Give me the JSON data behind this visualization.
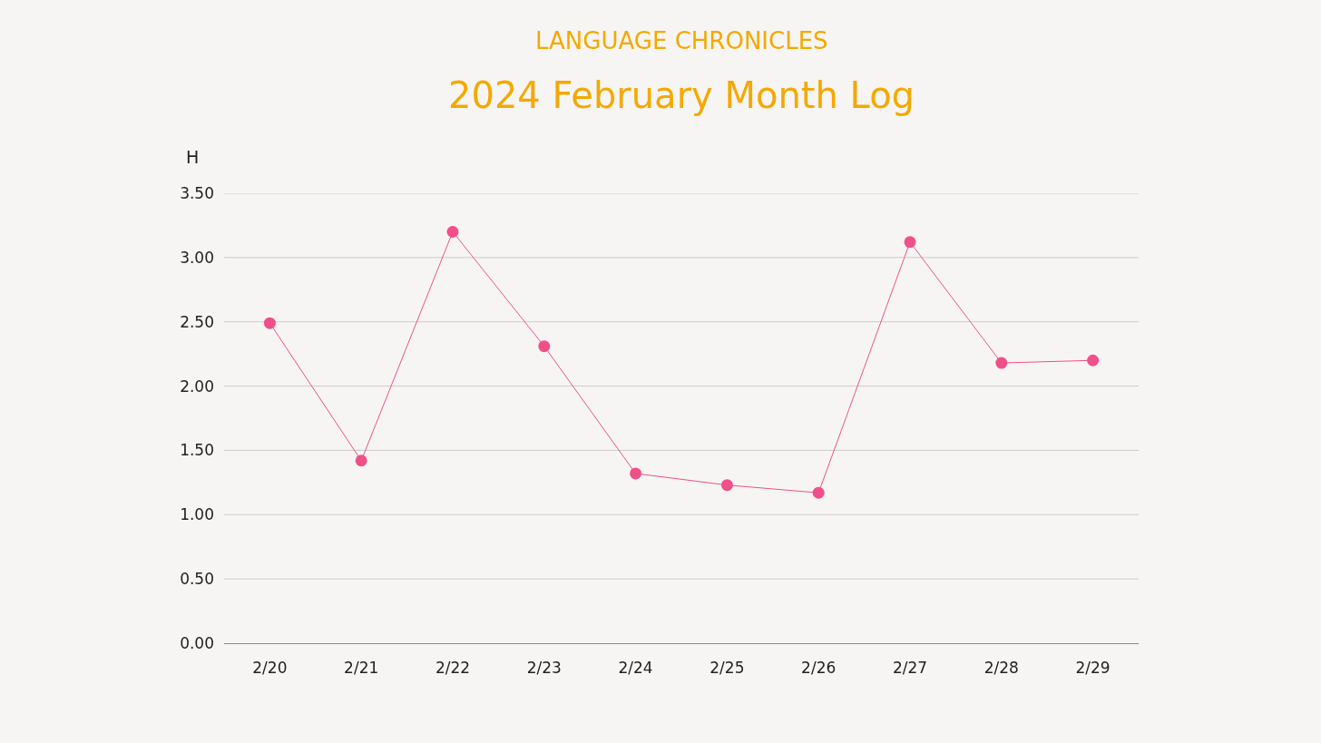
{
  "chart_data": {
    "type": "line",
    "title": "2024 February Month Log",
    "subtitle": "LANGUAGE CHRONICLES",
    "ylabel": "H",
    "categories": [
      "2/20",
      "2/21",
      "2/22",
      "2/23",
      "2/24",
      "2/25",
      "2/26",
      "2/27",
      "2/28",
      "2/29"
    ],
    "series": [
      {
        "color": "#f0508a",
        "values": [
          2.49,
          1.42,
          3.2,
          2.31,
          1.32,
          1.23,
          1.17,
          3.12,
          2.18,
          2.2
        ]
      }
    ],
    "ylim": [
      0,
      3.5
    ],
    "yticks": [
      {
        "value": 0,
        "label": "0.00"
      },
      {
        "value": 0.5,
        "label": "0.50"
      },
      {
        "value": 1,
        "label": "1.00"
      },
      {
        "value": 1.5,
        "label": "1.50"
      },
      {
        "value": 2,
        "label": "2.00"
      },
      {
        "value": 2.5,
        "label": "2.50"
      },
      {
        "value": 3,
        "label": "3.00"
      },
      {
        "value": 3.5,
        "label": "3.50"
      }
    ],
    "grid": "y",
    "marker": "circle",
    "line_style": "solid"
  }
}
